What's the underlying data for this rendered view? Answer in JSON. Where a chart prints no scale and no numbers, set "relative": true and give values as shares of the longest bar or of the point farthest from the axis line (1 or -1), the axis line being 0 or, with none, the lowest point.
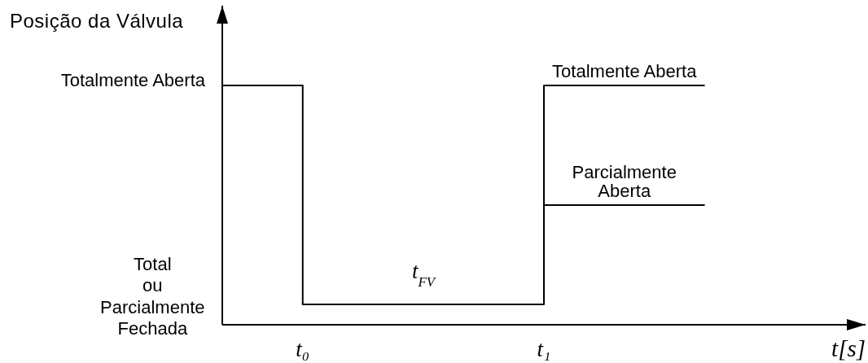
{
  "chart_data": {
    "type": "step",
    "relative": true,
    "xlabel": "t[s]",
    "ylabel": "Posição da Válvula",
    "categories": [
      null,
      "t₀",
      null,
      null,
      "t₁",
      null,
      null
    ],
    "series": [
      {
        "name": "Totalmente Aberta",
        "color": "#000000",
        "values": [
          1,
          0.085,
          0.085,
          0.085,
          1,
          1,
          1
        ]
      },
      {
        "name": "Parcialmente\nAberta",
        "color": "#000000",
        "values": [
          null,
          null,
          null,
          null,
          0.5,
          0.5,
          0.5
        ]
      }
    ],
    "annotations": [
      "Totalmente Aberta",
      "Total\nou\nParcialmente\nFechada",
      "t$_{FV}$"
    ]
  }
}
